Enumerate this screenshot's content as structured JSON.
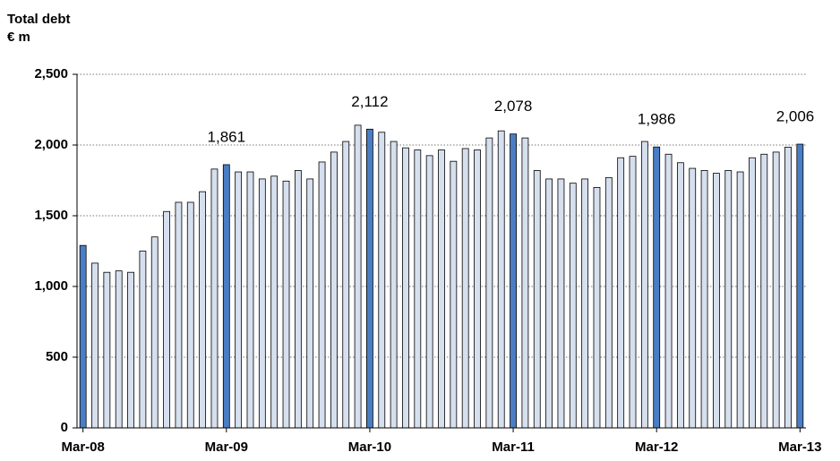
{
  "chart_data": {
    "type": "bar",
    "title": "Total debt",
    "subtitle": "€ m",
    "categories": [
      "Mar-08",
      null,
      null,
      null,
      null,
      null,
      null,
      null,
      null,
      null,
      null,
      null,
      "Mar-09",
      null,
      null,
      null,
      null,
      null,
      null,
      null,
      null,
      null,
      null,
      null,
      "Mar-10",
      null,
      null,
      null,
      null,
      null,
      null,
      null,
      null,
      null,
      null,
      null,
      "Mar-11",
      null,
      null,
      null,
      null,
      null,
      null,
      null,
      null,
      null,
      null,
      null,
      "Mar-12",
      null,
      null,
      null,
      null,
      null,
      null,
      null,
      null,
      null,
      null,
      null,
      "Mar-13"
    ],
    "values": [
      1290,
      1165,
      1100,
      1110,
      1100,
      1250,
      1350,
      1530,
      1595,
      1595,
      1670,
      1830,
      1861,
      1810,
      1810,
      1760,
      1780,
      1745,
      1820,
      1760,
      1880,
      1950,
      2025,
      2140,
      2112,
      2090,
      2025,
      1980,
      1965,
      1925,
      1965,
      1885,
      1975,
      1965,
      2050,
      2100,
      2078,
      2050,
      1820,
      1760,
      1760,
      1730,
      1760,
      1700,
      1770,
      1910,
      1920,
      2025,
      1986,
      1935,
      1875,
      1835,
      1820,
      1800,
      1820,
      1810,
      1910,
      1935,
      1950,
      1985,
      2006
    ],
    "value_labels": [
      null,
      null,
      null,
      null,
      null,
      null,
      null,
      null,
      null,
      null,
      null,
      null,
      "1,861",
      null,
      null,
      null,
      null,
      null,
      null,
      null,
      null,
      null,
      null,
      null,
      "2,112",
      null,
      null,
      null,
      null,
      null,
      null,
      null,
      null,
      null,
      null,
      null,
      "2,078",
      null,
      null,
      null,
      null,
      null,
      null,
      null,
      null,
      null,
      null,
      null,
      "1,986",
      null,
      null,
      null,
      null,
      null,
      null,
      null,
      null,
      null,
      null,
      null,
      "2,006"
    ],
    "color": "#d6dfee",
    "highlight_color": "#4a7ec4",
    "ylim": [
      0,
      2500
    ],
    "yticks": [
      0,
      500,
      {
        "value": 1000,
        "label": "1,000"
      },
      {
        "value": 1500,
        "label": "1,500"
      },
      {
        "value": 2000,
        "label": "2,000"
      },
      {
        "value": 2500,
        "label": "2,500"
      }
    ],
    "grid": true
  }
}
